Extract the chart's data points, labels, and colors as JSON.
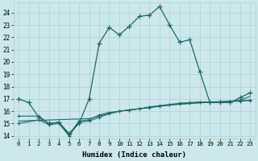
{
  "bg_color": "#cce8ec",
  "grid_color": "#b0d0d4",
  "line_color": "#1a6b60",
  "xlabel": "Humidex (Indice chaleur)",
  "xlim": [
    -0.5,
    23.5
  ],
  "ylim": [
    13.8,
    24.8
  ],
  "yticks": [
    14,
    15,
    16,
    17,
    18,
    19,
    20,
    21,
    22,
    23,
    24
  ],
  "xticks": [
    0,
    1,
    2,
    3,
    4,
    5,
    6,
    7,
    8,
    9,
    10,
    11,
    12,
    13,
    14,
    15,
    16,
    17,
    18,
    19,
    20,
    21,
    22,
    23
  ],
  "line1_x": [
    0,
    1,
    2,
    3,
    4,
    5,
    6,
    7,
    8,
    9,
    10,
    11,
    12,
    13,
    14,
    15,
    16,
    17,
    18,
    19,
    20,
    21,
    22,
    23
  ],
  "line1_y": [
    17.0,
    16.7,
    15.5,
    15.0,
    15.1,
    14.2,
    15.0,
    17.0,
    21.5,
    22.8,
    22.2,
    22.9,
    23.7,
    23.8,
    24.5,
    23.0,
    21.6,
    21.8,
    19.2,
    16.7,
    16.7,
    16.7,
    17.1,
    17.5
  ],
  "line2_x": [
    0,
    2,
    3,
    4,
    5,
    6,
    7,
    8,
    9,
    10,
    11,
    12,
    13,
    14,
    15,
    16,
    17,
    18,
    19,
    20,
    21,
    22,
    23
  ],
  "line2_y": [
    15.6,
    15.6,
    15.0,
    15.1,
    14.1,
    15.2,
    15.3,
    15.7,
    15.9,
    16.0,
    16.1,
    16.2,
    16.35,
    16.45,
    16.55,
    16.65,
    16.7,
    16.75,
    16.75,
    16.78,
    16.8,
    16.85,
    16.9
  ],
  "line3_x": [
    0,
    2,
    3,
    4,
    5,
    6,
    7,
    8,
    9,
    10,
    11,
    12,
    13,
    14,
    15,
    16,
    17,
    18,
    19,
    20,
    21,
    22,
    23
  ],
  "line3_y": [
    15.0,
    15.3,
    14.9,
    15.0,
    14.0,
    15.1,
    15.2,
    15.5,
    15.8,
    16.0,
    16.1,
    16.2,
    16.3,
    16.4,
    16.5,
    16.6,
    16.65,
    16.7,
    16.72,
    16.75,
    16.78,
    16.82,
    16.88
  ],
  "line4_x": [
    0,
    7,
    10,
    15,
    18,
    20,
    21,
    22,
    23
  ],
  "line4_y": [
    15.2,
    15.4,
    16.0,
    16.5,
    16.68,
    16.75,
    16.8,
    16.9,
    17.2
  ]
}
